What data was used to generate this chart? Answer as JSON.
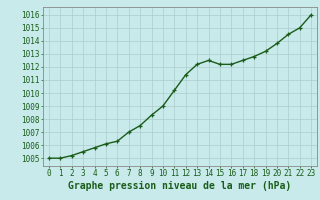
{
  "x": [
    0,
    1,
    2,
    3,
    4,
    5,
    6,
    7,
    8,
    9,
    10,
    11,
    12,
    13,
    14,
    15,
    16,
    17,
    18,
    19,
    20,
    21,
    22,
    23
  ],
  "y": [
    1005.0,
    1005.0,
    1005.2,
    1005.5,
    1005.8,
    1006.1,
    1006.3,
    1007.0,
    1007.5,
    1008.3,
    1009.0,
    1010.2,
    1011.4,
    1012.2,
    1012.5,
    1012.2,
    1012.2,
    1012.5,
    1012.8,
    1013.2,
    1013.8,
    1014.5,
    1015.0,
    1016.0
  ],
  "line_color": "#1a5c1a",
  "marker_color": "#1a5c1a",
  "bg_color": "#c8eaea",
  "grid_color": "#aacccc",
  "title": "Graphe pression niveau de la mer (hPa)",
  "title_color": "#1a5c1a",
  "ylabel_start": 1005,
  "ylabel_end": 1016,
  "ylabel_step": 1,
  "xlim": [
    -0.5,
    23.5
  ],
  "ylim": [
    1004.4,
    1016.6
  ],
  "tick_color": "#1a5c1a",
  "axis_color": "#888888",
  "title_fontsize": 7.0,
  "tick_fontsize": 5.5,
  "marker_size": 3.0,
  "line_width": 1.0
}
